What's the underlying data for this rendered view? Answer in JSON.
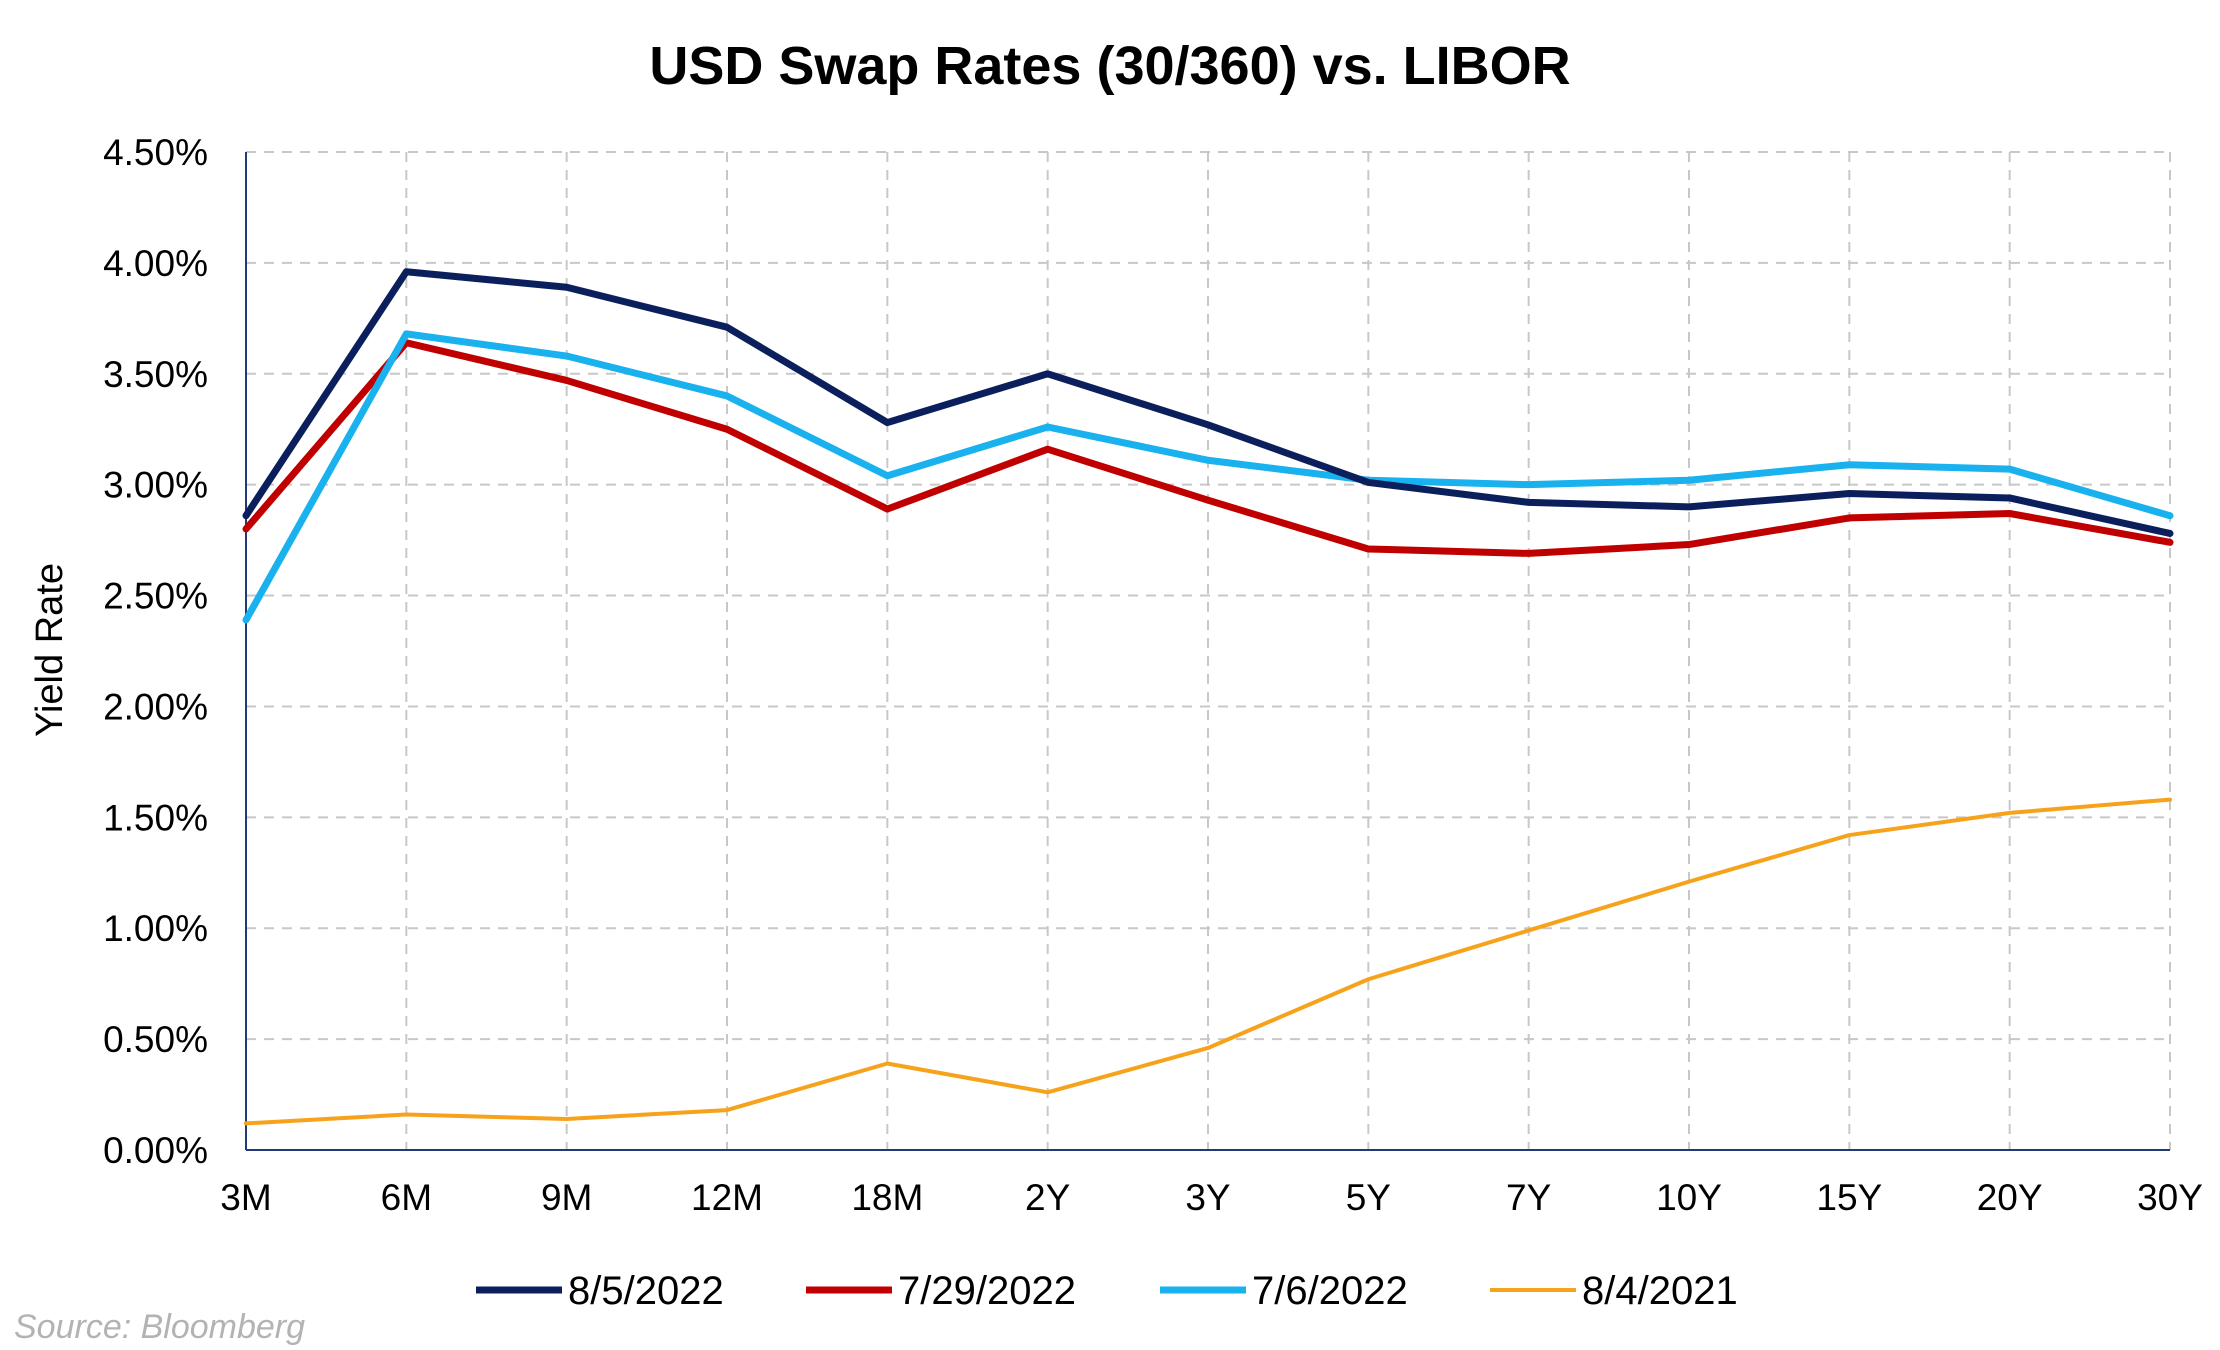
{
  "chart_data": {
    "type": "line",
    "title": "USD Swap Rates (30/360) vs. LIBOR",
    "xlabel": "",
    "ylabel": "Yield Rate",
    "categories": [
      "3M",
      "6M",
      "9M",
      "12M",
      "18M",
      "2Y",
      "3Y",
      "5Y",
      "7Y",
      "10Y",
      "15Y",
      "20Y",
      "30Y"
    ],
    "ylim": [
      0,
      4.5
    ],
    "yticks": [
      0,
      0.5,
      1.0,
      1.5,
      2.0,
      2.5,
      3.0,
      3.5,
      4.0,
      4.5
    ],
    "ytick_labels": [
      "0.00%",
      "0.50%",
      "1.00%",
      "1.50%",
      "2.00%",
      "2.50%",
      "3.00%",
      "3.50%",
      "4.00%",
      "4.50%"
    ],
    "grid": true,
    "legend_position": "bottom",
    "series": [
      {
        "name": "8/5/2022",
        "color": "#0b1f5c",
        "values": [
          2.86,
          3.96,
          3.89,
          3.71,
          3.28,
          3.5,
          3.27,
          3.01,
          2.92,
          2.9,
          2.96,
          2.94,
          2.78
        ]
      },
      {
        "name": "7/29/2022",
        "color": "#c00000",
        "values": [
          2.8,
          3.64,
          3.47,
          3.25,
          2.89,
          3.16,
          2.93,
          2.71,
          2.69,
          2.73,
          2.85,
          2.87,
          2.74
        ]
      },
      {
        "name": "7/6/2022",
        "color": "#1ab1ef",
        "values": [
          2.39,
          3.68,
          3.58,
          3.4,
          3.04,
          3.26,
          3.11,
          3.02,
          3.0,
          3.02,
          3.09,
          3.07,
          2.86
        ]
      },
      {
        "name": "8/4/2021",
        "color": "#f7a21b",
        "values": [
          0.12,
          0.16,
          0.14,
          0.18,
          0.39,
          0.26,
          0.46,
          0.77,
          0.99,
          1.21,
          1.42,
          1.52,
          1.58
        ]
      }
    ]
  },
  "source": "Source: Bloomberg"
}
